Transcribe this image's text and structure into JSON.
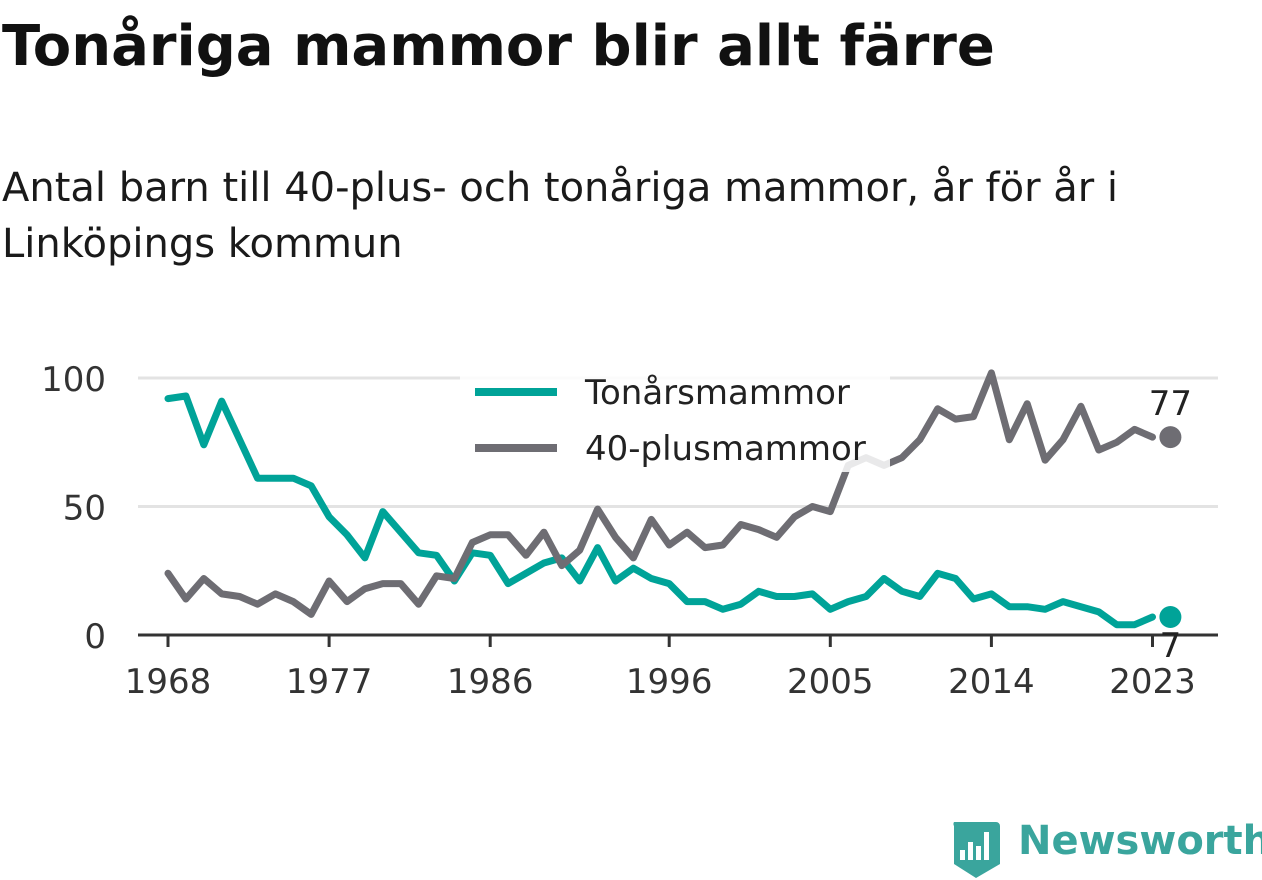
{
  "title": "Tonåriga mammor blir allt färre",
  "subtitle": "Antal barn till 40-plus- och tonåriga mammor, år för år i Linköpings kommun",
  "brand": {
    "name": "Newsworthy",
    "color": "#3aa59d",
    "icon": "newsworthy-logo-icon"
  },
  "colors": {
    "teen": "#00a398",
    "forty": "#6e6d73",
    "grid": "#e3e3e3",
    "axis": "#333333"
  },
  "chart_data": {
    "type": "line",
    "ylim": [
      0,
      100
    ],
    "yticks": [
      0,
      50,
      100
    ],
    "xlim": [
      1967,
      2025
    ],
    "xticks": [
      1968,
      1977,
      1986,
      1996,
      2005,
      2014,
      2023
    ],
    "legend_position": "top-center",
    "end_labels": [
      {
        "series": 0,
        "x": 2024,
        "label": "7"
      },
      {
        "series": 1,
        "x": 2024,
        "label": "77"
      }
    ],
    "series": [
      {
        "name": "Tonårsmammor",
        "color": "#00a398",
        "points": [
          [
            1968,
            92
          ],
          [
            1969,
            93
          ],
          [
            1970,
            74
          ],
          [
            1971,
            91
          ],
          [
            1972,
            76
          ],
          [
            1973,
            61
          ],
          [
            1974,
            61
          ],
          [
            1975,
            61
          ],
          [
            1976,
            58
          ],
          [
            1977,
            46
          ],
          [
            1978,
            39
          ],
          [
            1979,
            30
          ],
          [
            1980,
            48
          ],
          [
            1981,
            40
          ],
          [
            1982,
            32
          ],
          [
            1983,
            31
          ],
          [
            1984,
            21
          ],
          [
            1985,
            32
          ],
          [
            1986,
            31
          ],
          [
            1987,
            20
          ],
          [
            1988,
            24
          ],
          [
            1989,
            28
          ],
          [
            1990,
            30
          ],
          [
            1991,
            21
          ],
          [
            1992,
            34
          ],
          [
            1993,
            21
          ],
          [
            1994,
            26
          ],
          [
            1995,
            22
          ],
          [
            1996,
            20
          ],
          [
            1997,
            13
          ],
          [
            1998,
            13
          ],
          [
            1999,
            10
          ],
          [
            2000,
            12
          ],
          [
            2001,
            17
          ],
          [
            2002,
            15
          ],
          [
            2003,
            15
          ],
          [
            2004,
            16
          ],
          [
            2005,
            10
          ],
          [
            2006,
            13
          ],
          [
            2007,
            15
          ],
          [
            2008,
            22
          ],
          [
            2009,
            17
          ],
          [
            2010,
            15
          ],
          [
            2011,
            24
          ],
          [
            2012,
            22
          ],
          [
            2013,
            14
          ],
          [
            2014,
            16
          ],
          [
            2015,
            11
          ],
          [
            2016,
            11
          ],
          [
            2017,
            10
          ],
          [
            2018,
            13
          ],
          [
            2019,
            11
          ],
          [
            2020,
            9
          ],
          [
            2021,
            4
          ],
          [
            2022,
            4
          ],
          [
            2023,
            7
          ]
        ]
      },
      {
        "name": "40-plusmammor",
        "color": "#6e6d73",
        "points": [
          [
            1968,
            24
          ],
          [
            1969,
            14
          ],
          [
            1970,
            22
          ],
          [
            1971,
            16
          ],
          [
            1972,
            15
          ],
          [
            1973,
            12
          ],
          [
            1974,
            16
          ],
          [
            1975,
            13
          ],
          [
            1976,
            8
          ],
          [
            1977,
            21
          ],
          [
            1978,
            13
          ],
          [
            1979,
            18
          ],
          [
            1980,
            20
          ],
          [
            1981,
            20
          ],
          [
            1982,
            12
          ],
          [
            1983,
            23
          ],
          [
            1984,
            22
          ],
          [
            1985,
            36
          ],
          [
            1986,
            39
          ],
          [
            1987,
            39
          ],
          [
            1988,
            31
          ],
          [
            1989,
            40
          ],
          [
            1990,
            27
          ],
          [
            1991,
            33
          ],
          [
            1992,
            49
          ],
          [
            1993,
            38
          ],
          [
            1994,
            30
          ],
          [
            1995,
            45
          ],
          [
            1996,
            35
          ],
          [
            1997,
            40
          ],
          [
            1998,
            34
          ],
          [
            1999,
            35
          ],
          [
            2000,
            43
          ],
          [
            2001,
            41
          ],
          [
            2002,
            38
          ],
          [
            2003,
            46
          ],
          [
            2004,
            50
          ],
          [
            2005,
            48
          ],
          [
            2006,
            66
          ],
          [
            2007,
            69
          ],
          [
            2008,
            66
          ],
          [
            2009,
            69
          ],
          [
            2010,
            76
          ],
          [
            2011,
            88
          ],
          [
            2012,
            84
          ],
          [
            2013,
            85
          ],
          [
            2014,
            102
          ],
          [
            2015,
            76
          ],
          [
            2016,
            90
          ],
          [
            2017,
            68
          ],
          [
            2018,
            76
          ],
          [
            2019,
            89
          ],
          [
            2020,
            72
          ],
          [
            2021,
            75
          ],
          [
            2022,
            80
          ],
          [
            2023,
            77
          ]
        ]
      }
    ]
  }
}
